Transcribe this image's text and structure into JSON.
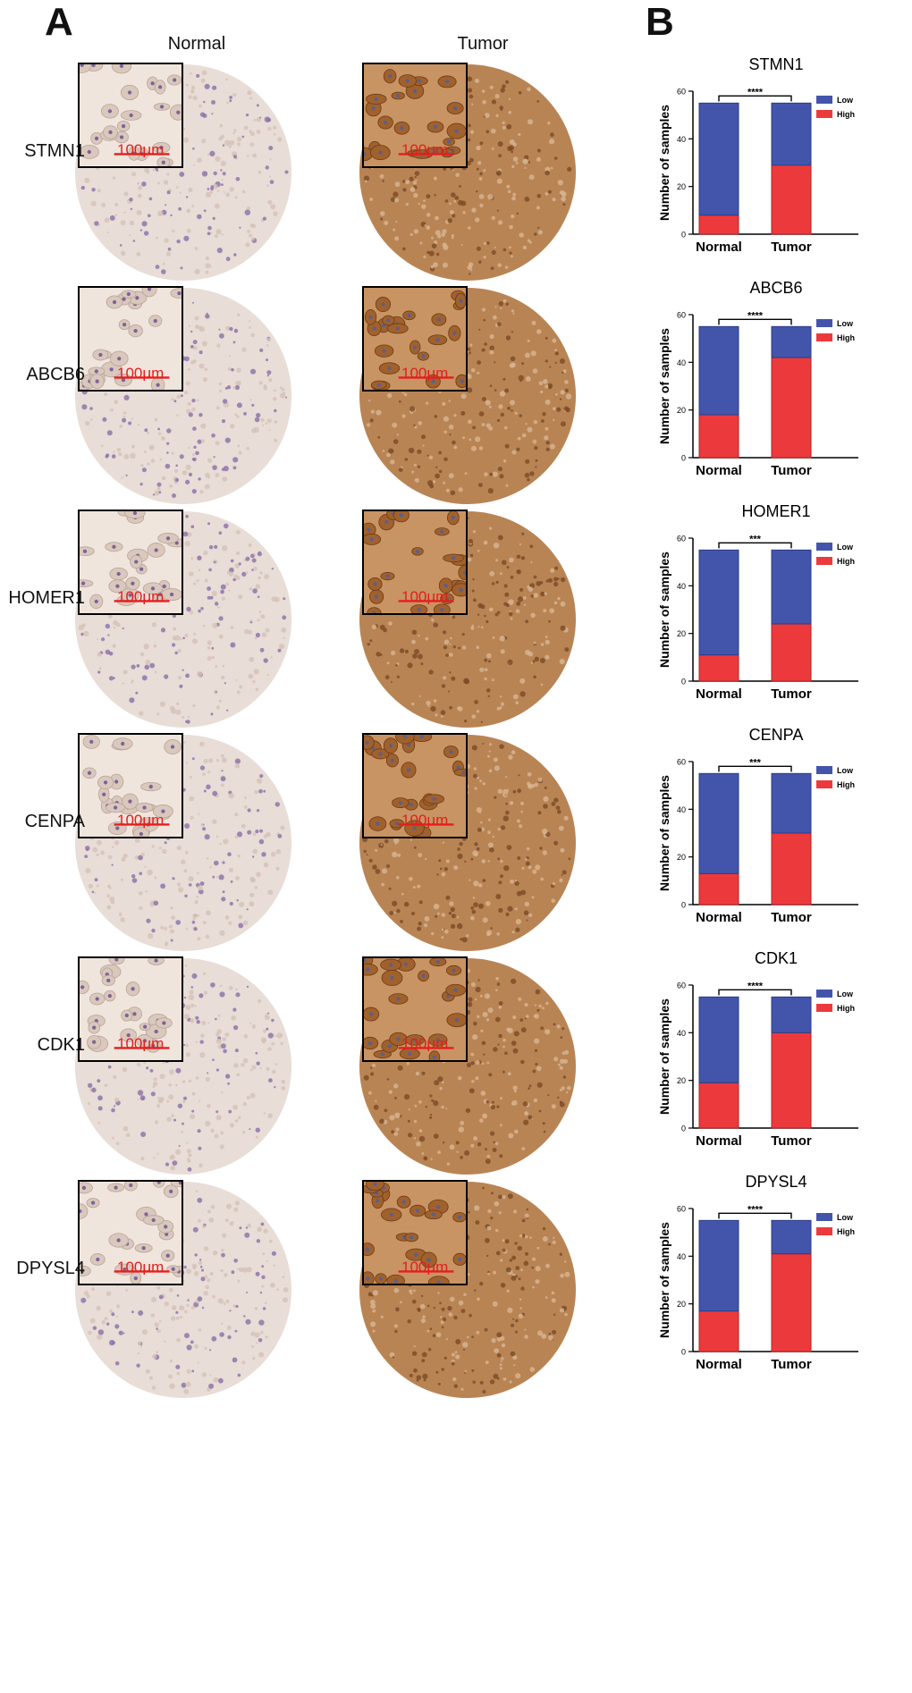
{
  "panels": {
    "a": "A",
    "b": "B"
  },
  "columns": {
    "normal": "Normal",
    "tumor": "Tumor"
  },
  "scalebar": "100μm",
  "genes": [
    "STMN1",
    "ABCB6",
    "HOMER1",
    "CENPA",
    "CDK1",
    "DPYSL4"
  ],
  "colors": {
    "low": "#4355ab",
    "high": "#ec3a3c",
    "normal_tissue": "#e8ddd7",
    "tumor_tissue": "#b98454"
  },
  "chart_data": [
    {
      "type": "bar",
      "stacked": true,
      "title": "STMN1",
      "categories": [
        "Normal",
        "Tumor"
      ],
      "ylabel": "Number of samples",
      "ylim": [
        0,
        60
      ],
      "yticks": [
        0,
        20,
        40,
        60
      ],
      "series": [
        {
          "name": "Low",
          "values": [
            47,
            26
          ]
        },
        {
          "name": "High",
          "values": [
            8,
            29
          ]
        }
      ],
      "significance": "****",
      "legend": "top-right"
    },
    {
      "type": "bar",
      "stacked": true,
      "title": "ABCB6",
      "categories": [
        "Normal",
        "Tumor"
      ],
      "ylabel": "Number of samples",
      "ylim": [
        0,
        60
      ],
      "yticks": [
        0,
        20,
        40,
        60
      ],
      "series": [
        {
          "name": "Low",
          "values": [
            37,
            13
          ]
        },
        {
          "name": "High",
          "values": [
            18,
            42
          ]
        }
      ],
      "significance": "****",
      "legend": "top-right"
    },
    {
      "type": "bar",
      "stacked": true,
      "title": "HOMER1",
      "categories": [
        "Normal",
        "Tumor"
      ],
      "ylabel": "Number of samples",
      "ylim": [
        0,
        60
      ],
      "yticks": [
        0,
        20,
        40,
        60
      ],
      "series": [
        {
          "name": "Low",
          "values": [
            44,
            31
          ]
        },
        {
          "name": "High",
          "values": [
            11,
            24
          ]
        }
      ],
      "significance": "***",
      "legend": "top-right"
    },
    {
      "type": "bar",
      "stacked": true,
      "title": "CENPA",
      "categories": [
        "Normal",
        "Tumor"
      ],
      "ylabel": "Number of samples",
      "ylim": [
        0,
        60
      ],
      "yticks": [
        0,
        20,
        40,
        60
      ],
      "series": [
        {
          "name": "Low",
          "values": [
            42,
            25
          ]
        },
        {
          "name": "High",
          "values": [
            13,
            30
          ]
        }
      ],
      "significance": "***",
      "legend": "top-right"
    },
    {
      "type": "bar",
      "stacked": true,
      "title": "CDK1",
      "categories": [
        "Normal",
        "Tumor"
      ],
      "ylabel": "Number of samples",
      "ylim": [
        0,
        60
      ],
      "yticks": [
        0,
        20,
        40,
        60
      ],
      "series": [
        {
          "name": "Low",
          "values": [
            36,
            15
          ]
        },
        {
          "name": "High",
          "values": [
            19,
            40
          ]
        }
      ],
      "significance": "****",
      "legend": "top-right"
    },
    {
      "type": "bar",
      "stacked": true,
      "title": "DPYSL4",
      "categories": [
        "Normal",
        "Tumor"
      ],
      "ylabel": "Number of samples",
      "ylim": [
        0,
        60
      ],
      "yticks": [
        0,
        20,
        40,
        60
      ],
      "series": [
        {
          "name": "Low",
          "values": [
            38,
            14
          ]
        },
        {
          "name": "High",
          "values": [
            17,
            41
          ]
        }
      ],
      "significance": "****",
      "legend": "top-right"
    }
  ]
}
